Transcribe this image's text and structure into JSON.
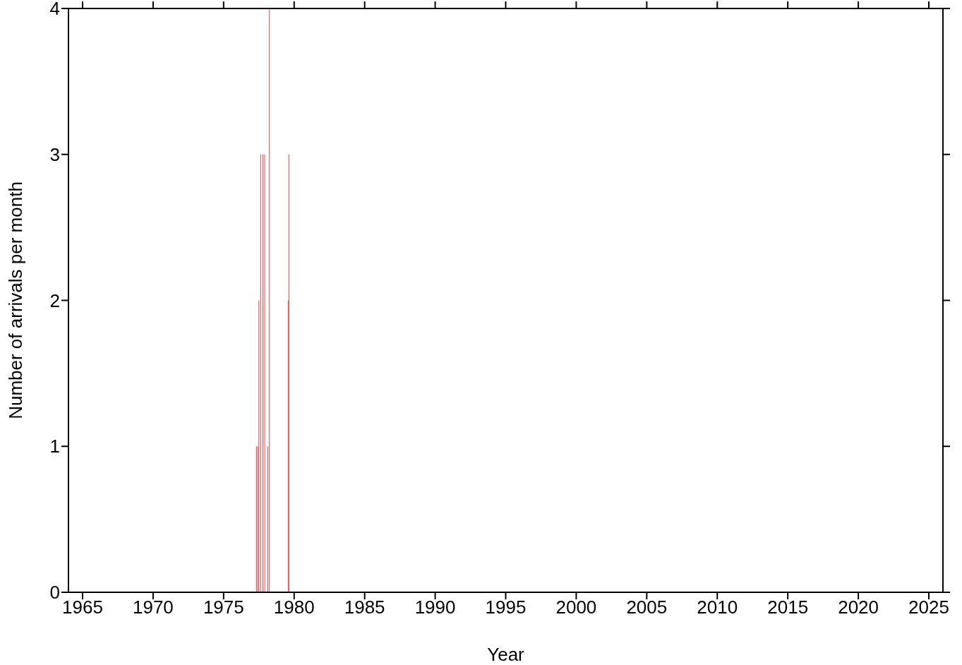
{
  "chart_data": {
    "type": "bar",
    "xlabel": "Year",
    "ylabel": "Number of arrivals per month",
    "x": [
      1977.33,
      1977.42,
      1977.5,
      1977.63,
      1977.79,
      1977.92,
      1978.13,
      1978.25,
      1979.58,
      1979.63
    ],
    "values": [
      1,
      1,
      2,
      3,
      3,
      3,
      1,
      4,
      2,
      3
    ],
    "color": "#f03030",
    "xlim": [
      1964,
      2026
    ],
    "xticks": [
      1965,
      1970,
      1975,
      1980,
      1985,
      1990,
      1995,
      2000,
      2005,
      2010,
      2015,
      2020,
      2025
    ],
    "ylim": [
      0,
      4
    ],
    "yticks": [
      0,
      1,
      2,
      3,
      4
    ],
    "grid": false
  }
}
